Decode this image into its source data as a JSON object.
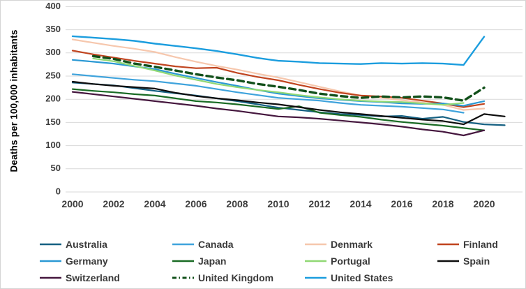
{
  "chart_data": {
    "type": "line",
    "title": "",
    "xlabel": "",
    "ylabel": "Deaths per 100,000 inhabitants",
    "ylim": [
      0,
      400
    ],
    "xlim": [
      2000,
      2021
    ],
    "y_ticks": [
      400,
      350,
      300,
      250,
      200,
      150,
      100,
      50,
      0
    ],
    "x_ticks": [
      2000,
      2002,
      2004,
      2006,
      2008,
      2010,
      2012,
      2014,
      2016,
      2018,
      2020
    ],
    "grid": "horizontal",
    "legend_position": "bottom",
    "series": [
      {
        "name": "Australia",
        "color": "#156082",
        "width": 2.2,
        "z": 0,
        "points": [
          [
            2000,
            236
          ],
          [
            2001,
            233
          ],
          [
            2002,
            230
          ],
          [
            2003,
            224
          ],
          [
            2004,
            218
          ],
          [
            2005,
            213
          ],
          [
            2006,
            208
          ],
          [
            2007,
            202
          ],
          [
            2008,
            196
          ],
          [
            2009,
            189
          ],
          [
            2010,
            182
          ],
          [
            2011,
            177
          ],
          [
            2012,
            172
          ],
          [
            2013,
            168
          ],
          [
            2014,
            166
          ],
          [
            2015,
            163
          ],
          [
            2016,
            164
          ],
          [
            2017,
            158
          ],
          [
            2018,
            162
          ],
          [
            2019,
            151
          ],
          [
            2020,
            146
          ],
          [
            2021,
            144
          ]
        ]
      },
      {
        "name": "Canada",
        "color": "#3FA3DC",
        "width": 2.2,
        "z": 0,
        "points": [
          [
            2000,
            254
          ],
          [
            2001,
            250
          ],
          [
            2002,
            246
          ],
          [
            2003,
            242
          ],
          [
            2004,
            239
          ],
          [
            2005,
            234
          ],
          [
            2006,
            229
          ],
          [
            2007,
            222
          ],
          [
            2008,
            215
          ],
          [
            2009,
            209
          ],
          [
            2010,
            203
          ],
          [
            2011,
            200
          ],
          [
            2012,
            197
          ],
          [
            2013,
            192
          ],
          [
            2014,
            188
          ],
          [
            2015,
            186
          ],
          [
            2016,
            184
          ],
          [
            2017,
            181
          ],
          [
            2018,
            178
          ],
          [
            2019,
            171
          ]
        ]
      },
      {
        "name": "Denmark",
        "color": "#F6C7AD",
        "width": 2.2,
        "z": 0,
        "points": [
          [
            2000,
            329
          ],
          [
            2001,
            322
          ],
          [
            2002,
            315
          ],
          [
            2003,
            309
          ],
          [
            2004,
            302
          ],
          [
            2005,
            291
          ],
          [
            2006,
            281
          ],
          [
            2007,
            272
          ],
          [
            2008,
            264
          ],
          [
            2009,
            255
          ],
          [
            2010,
            247
          ],
          [
            2011,
            237
          ],
          [
            2012,
            227
          ],
          [
            2013,
            217
          ],
          [
            2014,
            208
          ],
          [
            2015,
            203
          ],
          [
            2016,
            198
          ],
          [
            2017,
            193
          ],
          [
            2018,
            188
          ],
          [
            2019,
            177
          ],
          [
            2020,
            180
          ]
        ]
      },
      {
        "name": "Finland",
        "color": "#C0441F",
        "width": 2.2,
        "z": 0,
        "points": [
          [
            2000,
            305
          ],
          [
            2001,
            297
          ],
          [
            2002,
            290
          ],
          [
            2003,
            283
          ],
          [
            2004,
            277
          ],
          [
            2005,
            271
          ],
          [
            2006,
            267
          ],
          [
            2007,
            268
          ],
          [
            2008,
            257
          ],
          [
            2009,
            248
          ],
          [
            2010,
            241
          ],
          [
            2011,
            231
          ],
          [
            2012,
            222
          ],
          [
            2013,
            214
          ],
          [
            2014,
            208
          ],
          [
            2015,
            206
          ],
          [
            2016,
            203
          ],
          [
            2017,
            197
          ],
          [
            2018,
            191
          ],
          [
            2019,
            183
          ],
          [
            2020,
            190
          ]
        ]
      },
      {
        "name": "Germany",
        "color": "#2B99D4",
        "width": 2.2,
        "z": 0,
        "points": [
          [
            2000,
            285
          ],
          [
            2001,
            281
          ],
          [
            2002,
            277
          ],
          [
            2003,
            271
          ],
          [
            2004,
            265
          ],
          [
            2005,
            255
          ],
          [
            2006,
            246
          ],
          [
            2007,
            237
          ],
          [
            2008,
            229
          ],
          [
            2009,
            220
          ],
          [
            2010,
            212
          ],
          [
            2011,
            207
          ],
          [
            2012,
            202
          ],
          [
            2013,
            199
          ],
          [
            2014,
            196
          ],
          [
            2015,
            194
          ],
          [
            2016,
            191
          ],
          [
            2017,
            190
          ],
          [
            2018,
            191
          ],
          [
            2019,
            186
          ],
          [
            2020,
            196
          ]
        ]
      },
      {
        "name": "Japan",
        "color": "#196B24",
        "width": 2.2,
        "z": 0,
        "points": [
          [
            2000,
            222
          ],
          [
            2001,
            218
          ],
          [
            2002,
            215
          ],
          [
            2003,
            211
          ],
          [
            2004,
            208
          ],
          [
            2005,
            202
          ],
          [
            2006,
            196
          ],
          [
            2007,
            193
          ],
          [
            2008,
            189
          ],
          [
            2009,
            184
          ],
          [
            2010,
            179
          ],
          [
            2011,
            185
          ],
          [
            2012,
            171
          ],
          [
            2013,
            166
          ],
          [
            2014,
            162
          ],
          [
            2015,
            156
          ],
          [
            2016,
            151
          ],
          [
            2017,
            147
          ],
          [
            2018,
            143
          ],
          [
            2019,
            138
          ],
          [
            2020,
            133
          ]
        ]
      },
      {
        "name": "Portugal",
        "color": "#90D874",
        "width": 2.2,
        "z": 1,
        "points": [
          [
            2001,
            288
          ],
          [
            2002,
            282
          ],
          [
            2003,
            272
          ],
          [
            2004,
            262
          ],
          [
            2005,
            251
          ],
          [
            2006,
            242
          ],
          [
            2007,
            233
          ],
          [
            2008,
            226
          ],
          [
            2009,
            220
          ],
          [
            2010,
            215
          ],
          [
            2011,
            209
          ],
          [
            2012,
            204
          ],
          [
            2013,
            200
          ],
          [
            2014,
            197
          ],
          [
            2015,
            195
          ],
          [
            2016,
            194
          ],
          [
            2017,
            191
          ],
          [
            2018,
            188
          ],
          [
            2019,
            192
          ]
        ]
      },
      {
        "name": "Spain",
        "color": "#0D0D0D",
        "width": 2.2,
        "z": 0,
        "points": [
          [
            2000,
            238
          ],
          [
            2001,
            233
          ],
          [
            2002,
            229
          ],
          [
            2003,
            226
          ],
          [
            2004,
            223
          ],
          [
            2005,
            214
          ],
          [
            2006,
            207
          ],
          [
            2007,
            202
          ],
          [
            2008,
            198
          ],
          [
            2009,
            193
          ],
          [
            2010,
            189
          ],
          [
            2011,
            183
          ],
          [
            2012,
            177
          ],
          [
            2013,
            172
          ],
          [
            2014,
            168
          ],
          [
            2015,
            164
          ],
          [
            2016,
            160
          ],
          [
            2017,
            156
          ],
          [
            2018,
            153
          ],
          [
            2019,
            146
          ],
          [
            2020,
            168
          ],
          [
            2021,
            163
          ]
        ]
      },
      {
        "name": "Switzerland",
        "color": "#45173E",
        "width": 2.2,
        "z": 0,
        "points": [
          [
            2000,
            216
          ],
          [
            2001,
            211
          ],
          [
            2002,
            206
          ],
          [
            2003,
            201
          ],
          [
            2004,
            196
          ],
          [
            2005,
            191
          ],
          [
            2006,
            186
          ],
          [
            2007,
            180
          ],
          [
            2008,
            175
          ],
          [
            2009,
            169
          ],
          [
            2010,
            163
          ],
          [
            2011,
            161
          ],
          [
            2012,
            158
          ],
          [
            2013,
            154
          ],
          [
            2014,
            150
          ],
          [
            2015,
            146
          ],
          [
            2016,
            141
          ],
          [
            2017,
            135
          ],
          [
            2018,
            130
          ],
          [
            2019,
            122
          ],
          [
            2020,
            133
          ]
        ]
      },
      {
        "name": "United Kingdom",
        "color": "#11501A",
        "width": 3.4,
        "z": 3,
        "dash": "9,6",
        "points": [
          [
            2001,
            293
          ],
          [
            2002,
            287
          ],
          [
            2003,
            277
          ],
          [
            2004,
            270
          ],
          [
            2005,
            262
          ],
          [
            2006,
            254
          ],
          [
            2007,
            247
          ],
          [
            2008,
            241
          ],
          [
            2009,
            233
          ],
          [
            2010,
            227
          ],
          [
            2011,
            220
          ],
          [
            2012,
            212
          ],
          [
            2013,
            207
          ],
          [
            2014,
            203
          ],
          [
            2015,
            206
          ],
          [
            2016,
            204
          ],
          [
            2017,
            206
          ],
          [
            2018,
            204
          ],
          [
            2019,
            197
          ],
          [
            2020,
            225
          ]
        ]
      },
      {
        "name": "United States",
        "color": "#1B9DDE",
        "width": 2.4,
        "z": 2,
        "points": [
          [
            2000,
            336
          ],
          [
            2001,
            333
          ],
          [
            2002,
            330
          ],
          [
            2003,
            326
          ],
          [
            2004,
            320
          ],
          [
            2005,
            315
          ],
          [
            2006,
            310
          ],
          [
            2007,
            304
          ],
          [
            2008,
            297
          ],
          [
            2009,
            289
          ],
          [
            2010,
            283
          ],
          [
            2011,
            281
          ],
          [
            2012,
            278
          ],
          [
            2013,
            277
          ],
          [
            2014,
            276
          ],
          [
            2015,
            278
          ],
          [
            2016,
            277
          ],
          [
            2017,
            278
          ],
          [
            2018,
            277
          ],
          [
            2019,
            274
          ],
          [
            2020,
            335
          ]
        ]
      }
    ]
  },
  "style": {
    "grid_color": "#d9d9d9",
    "tick_text_color": "#3d3d3d",
    "background": "#ffffff",
    "border_color": "#d4d4d4"
  }
}
